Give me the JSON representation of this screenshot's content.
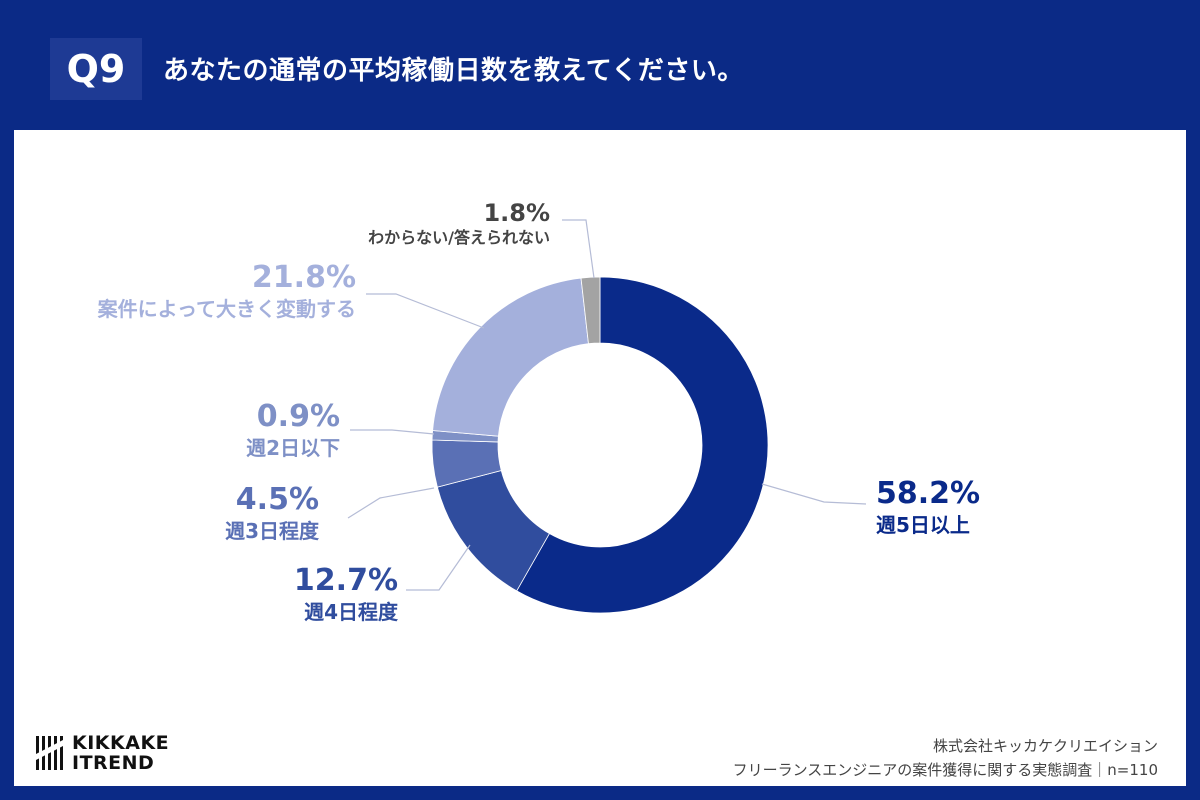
{
  "header": {
    "question_no": "Q9",
    "title": "あなたの通常の平均稼働日数を教えてください。"
  },
  "chart_data": {
    "type": "pie",
    "style": "donut",
    "slices": [
      {
        "label": "週5日以上",
        "value": 58.2,
        "display": "58.2%",
        "color": "#0a2a8a"
      },
      {
        "label": "週4日程度",
        "value": 12.7,
        "display": "12.7%",
        "color": "#304d9e"
      },
      {
        "label": "週3日程度",
        "value": 4.5,
        "display": "4.5%",
        "color": "#5a70b5"
      },
      {
        "label": "週2日以下",
        "value": 0.9,
        "display": "0.9%",
        "color": "#7e90c6"
      },
      {
        "label": "案件によって大きく変動する",
        "value": 21.8,
        "display": "21.8%",
        "color": "#a4b0dc"
      },
      {
        "label": "わからない/答えられない",
        "value": 1.8,
        "display": "1.8%",
        "color": "#a3a3a3"
      }
    ]
  },
  "footer": {
    "logo_line1": "KIKKAKE",
    "logo_line2": "ITREND",
    "company": "株式会社キッカケクリエイション",
    "survey": "フリーランスエンジニアの案件獲得に関する実態調査｜n=110"
  }
}
